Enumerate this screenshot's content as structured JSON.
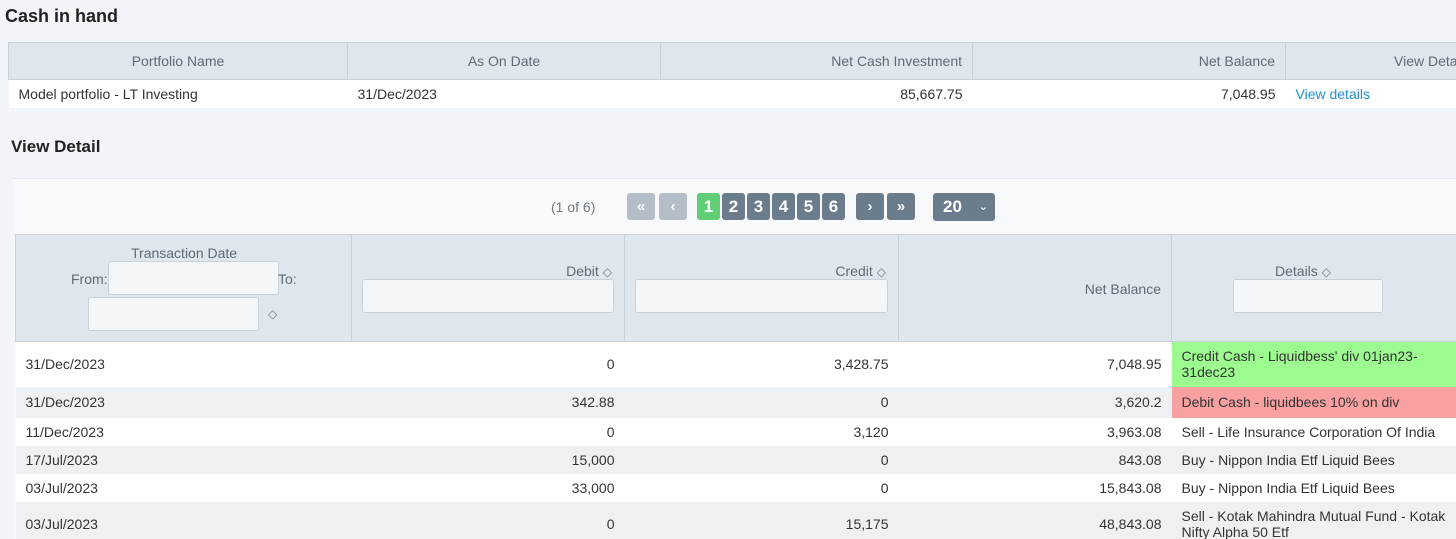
{
  "cash_section": {
    "title": "Cash in hand",
    "columns": [
      "Portfolio Name",
      "As On Date",
      "Net Cash Investment",
      "Net Balance",
      "View Details"
    ],
    "row": {
      "portfolio_name": "Model portfolio - LT Investing",
      "as_on_date": "31/Dec/2023",
      "net_cash_investment": "85,667.75",
      "net_balance": "7,048.95",
      "view_link": "View details"
    }
  },
  "detail_section": {
    "title": "View Detail",
    "paginator": {
      "page_info": "(1 of 6)",
      "first_icon": "«",
      "prev_icon": "‹",
      "next_icon": "›",
      "last_icon": "»",
      "pages": [
        "1",
        "2",
        "3",
        "4",
        "5",
        "6"
      ],
      "active_page": "1",
      "rows_per_page": "20",
      "caret": "⌄"
    },
    "headers": {
      "transaction_date": "Transaction Date",
      "from_label": "From:",
      "to_label": "To:",
      "debit": "Debit",
      "credit": "Credit",
      "net_balance": "Net Balance",
      "details": "Details",
      "sort_icon": "◇"
    },
    "rows": [
      {
        "date": "31/Dec/2023",
        "debit": "0",
        "credit": "3,428.75",
        "net_balance": "7,048.95",
        "details": "Credit Cash - Liquidbess' div 01jan23-31dec23",
        "highlight": "#9cfc90"
      },
      {
        "date": "31/Dec/2023",
        "debit": "342.88",
        "credit": "0",
        "net_balance": "3,620.2",
        "details": "Debit Cash - liquidbees 10% on div",
        "highlight": "#f9a1a1"
      },
      {
        "date": "11/Dec/2023",
        "debit": "0",
        "credit": "3,120",
        "net_balance": "3,963.08",
        "details": "Sell - Life Insurance Corporation Of India"
      },
      {
        "date": "17/Jul/2023",
        "debit": "15,000",
        "credit": "0",
        "net_balance": "843.08",
        "details": "Buy - Nippon India Etf Liquid Bees"
      },
      {
        "date": "03/Jul/2023",
        "debit": "33,000",
        "credit": "0",
        "net_balance": "15,843.08",
        "details": "Buy - Nippon India Etf Liquid Bees"
      },
      {
        "date": "03/Jul/2023",
        "debit": "0",
        "credit": "15,175",
        "net_balance": "48,843.08",
        "details": "Sell - Kotak Mahindra Mutual Fund - Kotak Nifty Alpha 50 Etf"
      }
    ]
  }
}
